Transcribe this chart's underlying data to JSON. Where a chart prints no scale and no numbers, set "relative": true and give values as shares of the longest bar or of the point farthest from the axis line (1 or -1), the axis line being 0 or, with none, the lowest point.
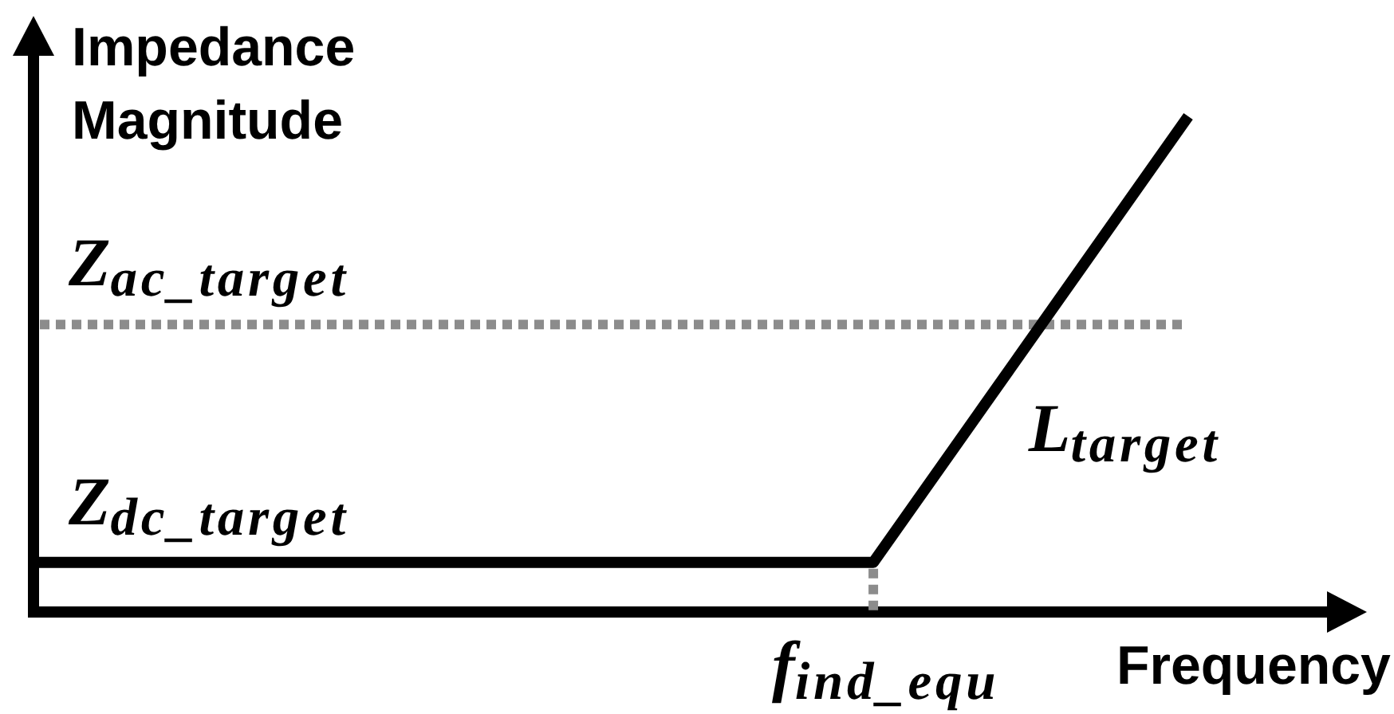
{
  "chart_data": {
    "type": "line",
    "ylabel": "Impedance Magnitude",
    "xlabel": "Frequency",
    "categories": [
      null,
      null,
      null,
      null,
      null,
      null,
      null,
      null,
      null,
      null,
      null,
      null
    ],
    "values": [
      0.1,
      0.1,
      0.1,
      0.1,
      0.1,
      0.1,
      0.1,
      0.1,
      0.1,
      0.4,
      0.7,
      1
    ],
    "color": "#000000",
    "relative": true,
    "marker": "none",
    "ref_lines": [
      {
        "axis": "y",
        "value": 0.58,
        "label": "Z$_{ac_target}$",
        "color": "#8c8c8c",
        "line_style": "dotted"
      }
    ],
    "annotations": [
      {
        "text": "Z$_{dc_target}$",
        "y": 0.1
      },
      "L$_{target}$",
      "f$_{ind_equ}$"
    ]
  }
}
